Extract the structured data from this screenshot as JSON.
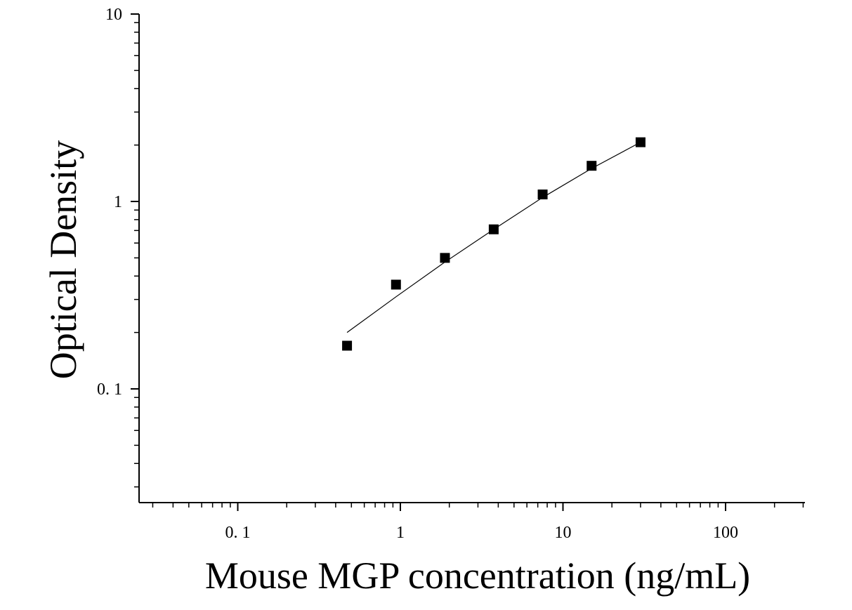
{
  "chart_data": {
    "type": "scatter",
    "xlabel": "Mouse MGP concentration (ng/mL)",
    "ylabel": "Optical Density",
    "x_scale": "log",
    "y_scale": "log",
    "xlim": [
      0.025,
      300
    ],
    "ylim": [
      0.026,
      10
    ],
    "x_ticks": [
      {
        "value": 0.1,
        "label": "0. 1"
      },
      {
        "value": 1,
        "label": "1"
      },
      {
        "value": 10,
        "label": "10"
      },
      {
        "value": 100,
        "label": "100"
      }
    ],
    "y_ticks": [
      {
        "value": 0.1,
        "label": "0. 1"
      },
      {
        "value": 1,
        "label": "1"
      },
      {
        "value": 10,
        "label": "10"
      }
    ],
    "series": [
      {
        "marker": "square",
        "color": "#000000",
        "points": [
          {
            "x": 0.47,
            "y": 0.17
          },
          {
            "x": 0.94,
            "y": 0.36
          },
          {
            "x": 1.88,
            "y": 0.5
          },
          {
            "x": 3.75,
            "y": 0.71
          },
          {
            "x": 7.5,
            "y": 1.09
          },
          {
            "x": 15,
            "y": 1.55
          },
          {
            "x": 30,
            "y": 2.07
          }
        ]
      }
    ],
    "fit_curve": {
      "color": "#000000",
      "points": [
        {
          "x": 0.47,
          "y": 0.2
        },
        {
          "x": 0.94,
          "y": 0.31
        },
        {
          "x": 1.88,
          "y": 0.475
        },
        {
          "x": 3.75,
          "y": 0.71
        },
        {
          "x": 7.5,
          "y": 1.05
        },
        {
          "x": 15,
          "y": 1.5
        },
        {
          "x": 30,
          "y": 2.07
        }
      ]
    },
    "grid": false,
    "legend": "none"
  }
}
